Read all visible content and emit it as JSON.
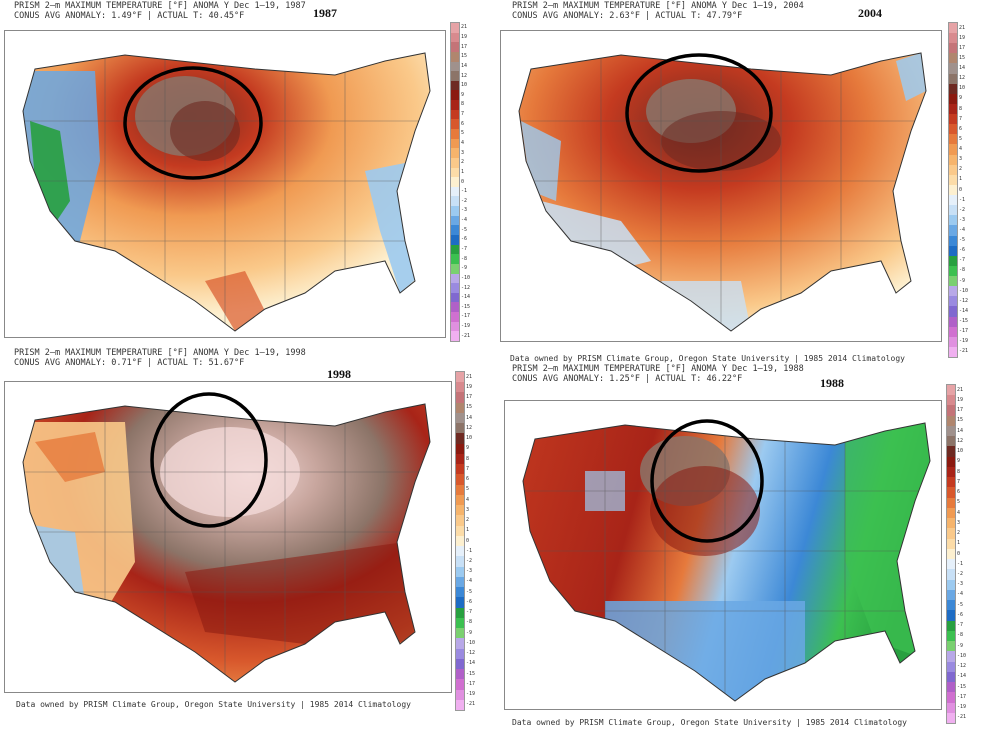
{
  "panels": [
    {
      "id": "p1987",
      "header_line1": "PRISM  2–m  MAXIMUM  TEMPERATURE  [°F]  ANOMA Y  Dec  1–19,  1987",
      "header_line2": "CONUS AVG ANOMALY:  1.49°F  |  ACTUAL T:  40.45°F",
      "year": "1987",
      "credit": ""
    },
    {
      "id": "p2004",
      "header_line1": "PRISM  2–m  MAXIMUM  TEMPERATURE  [°F]  ANOMA Y  Dec  1–19,  2004",
      "header_line2": "CONUS AVG ANOMALY:  2.63°F  |  ACTUAL T:  47.79°F",
      "year": "2004",
      "credit": "Data owned by PRISM Climate Group, Oregon State University  |  1985  2014 Climatology"
    },
    {
      "id": "p1998",
      "header_line1": "PRISM  2–m  MAXIMUM  TEMPERATURE  [°F]  ANOMA Y  Dec  1–19,  1998",
      "header_line2": "CONUS AVG ANOMALY:  0.71°F  |  ACTUAL T:  51.67°F",
      "year": "1998",
      "credit": "Data owned by PRISM Climate Group, Oregon State University  |  1985  2014 Climatology"
    },
    {
      "id": "p1988",
      "header_line1": "PRISM  2–m  MAXIMUM  TEMPERATURE  [°F]  ANOMA Y  Dec  1–19,  1988",
      "header_line2": "CONUS AVG ANOMALY:  1.25°F  |  ACTUAL T:  46.22°F",
      "year": "1988",
      "credit": "Data owned by PRISM Climate Group, Oregon State University  |  1985  2014 Climatology"
    }
  ],
  "colorbar": {
    "ticks": [
      "21",
      "19",
      "17",
      "15",
      "14",
      "12",
      "10",
      "9",
      "8",
      "7",
      "6",
      "5",
      "4",
      "3",
      "2",
      "1",
      "0",
      "-1",
      "-2",
      "-3",
      "-4",
      "-5",
      "-6",
      "-7",
      "-8",
      "-9",
      "-10",
      "-12",
      "-14",
      "-15",
      "-17",
      "-19",
      "-21"
    ],
    "colors": [
      "#e6a3a6",
      "#d88a8e",
      "#c47478",
      "#b0866e",
      "#a0918c",
      "#8c7468",
      "#6e2a22",
      "#8b1a10",
      "#a82418",
      "#c43a20",
      "#d8582c",
      "#e67a3c",
      "#f09a52",
      "#f6b46c",
      "#fac98a",
      "#fcdca8",
      "#fdf0d0",
      "#e6f0fa",
      "#c8e0f6",
      "#9ccaf0",
      "#6aa8e4",
      "#3c88d6",
      "#1e6cc4",
      "#28a040",
      "#3cc050",
      "#7ad070",
      "#b8a8e8",
      "#9a8ae0",
      "#8068d0",
      "#b060c8",
      "#d070d0",
      "#e090e0",
      "#f0b0f0"
    ]
  }
}
